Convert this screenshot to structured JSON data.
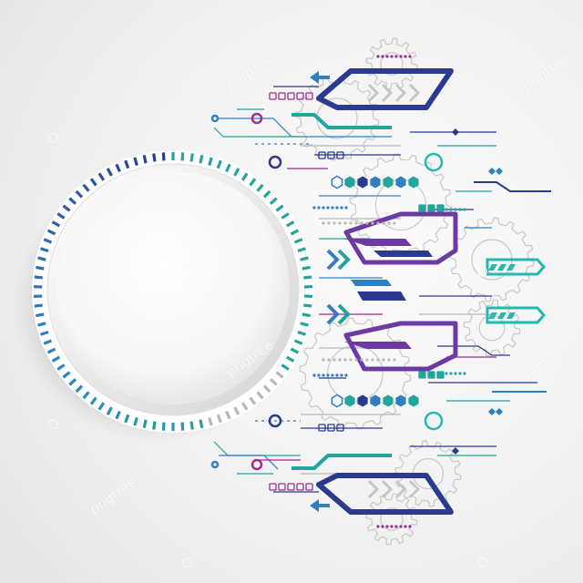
{
  "watermark": {
    "text": "pngtree"
  },
  "palette": {
    "navy": "#2b3a8f",
    "blue": "#2f7fc1",
    "teal": "#22a59a",
    "aqua": "#27b8b0",
    "purple": "#6b3aa3",
    "magenta": "#9b2f8e",
    "gray": "#b8b8b8"
  }
}
